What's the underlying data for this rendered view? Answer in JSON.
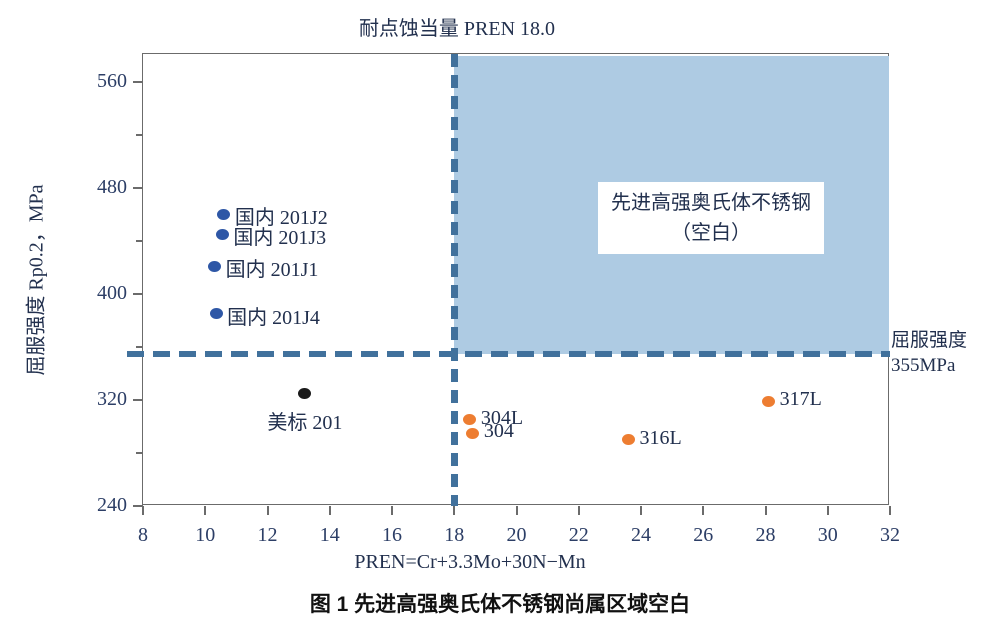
{
  "figure": {
    "top_title": "耐点蚀当量 PREN 18.0",
    "y_axis_title": "屈服强度 Rp0.2，MPa",
    "x_axis_title": "PREN=Cr+3.3Mo+30N−Mn",
    "caption": "图 1 先进高强奥氏体不锈钢尚属区域空白",
    "region_label_line1": "先进高强奥氏体不锈钢",
    "region_label_line2": "（空白）",
    "threshold_label_line1": "屈服强度",
    "threshold_label_line2": "355MPa"
  },
  "colors": {
    "domestic_point": "#2E57A6",
    "us_point": "#1a1a1a",
    "conventional_point": "#ED7D31",
    "dashed_line": "#41719C",
    "region_fill": "#AECBE3",
    "axis": "#6b6b6b",
    "tick_text": "#2c3e66",
    "label_text": "#22304e"
  },
  "chart_data": {
    "type": "scatter",
    "title": "耐点蚀当量 PREN 18.0",
    "xlabel": "PREN=Cr+3.3Mo+30N−Mn",
    "ylabel": "屈服强度 Rp0.2，MPa",
    "xlim": [
      8,
      32
    ],
    "ylim": [
      240,
      581
    ],
    "x_ticks": [
      8,
      10,
      12,
      14,
      16,
      18,
      20,
      22,
      24,
      26,
      28,
      30,
      32
    ],
    "y_ticks": [
      240,
      320,
      400,
      480,
      560
    ],
    "y_minor_ticks": [
      280,
      360,
      440,
      520
    ],
    "grid": false,
    "legend": "none (inline point labels)",
    "reference_lines": {
      "vertical_pren": 18.0,
      "horizontal_yield_mpa": 355
    },
    "shaded_region": {
      "x_min": 18,
      "x_max": 32,
      "y_min": 355,
      "y_max": 581,
      "label": "先进高强奥氏体不锈钢（空白）"
    },
    "series": [
      {
        "name": "domestic-201-steels",
        "color_key": "domestic_point",
        "points": [
          {
            "x": 10.6,
            "y": 460,
            "label": "国内 201J2",
            "label_pos": "right"
          },
          {
            "x": 10.55,
            "y": 445,
            "label": "国内 201J3",
            "label_pos": "right"
          },
          {
            "x": 10.3,
            "y": 421,
            "label": "国内 201J1",
            "label_pos": "right"
          },
          {
            "x": 10.35,
            "y": 385,
            "label": "国内 201J4",
            "label_pos": "right"
          }
        ]
      },
      {
        "name": "us-standard-201",
        "color_key": "us_point",
        "points": [
          {
            "x": 13.2,
            "y": 325,
            "label": "美标 201",
            "label_pos": "below"
          }
        ]
      },
      {
        "name": "conventional-300-series",
        "color_key": "conventional_point",
        "points": [
          {
            "x": 18.5,
            "y": 305,
            "label": "304L",
            "label_pos": "right"
          },
          {
            "x": 18.6,
            "y": 295,
            "label": "304",
            "label_pos": "right"
          },
          {
            "x": 23.6,
            "y": 290,
            "label": "316L",
            "label_pos": "right"
          },
          {
            "x": 28.1,
            "y": 319,
            "label": "317L",
            "label_pos": "right"
          }
        ]
      }
    ]
  }
}
